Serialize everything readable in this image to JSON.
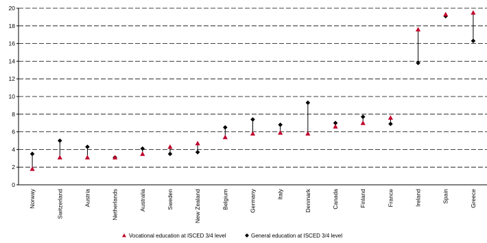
{
  "chart_data": {
    "type": "scatter",
    "title": "",
    "xlabel": "",
    "ylabel": "",
    "ylim": [
      0,
      20
    ],
    "yticks": [
      0,
      2,
      4,
      6,
      8,
      10,
      12,
      14,
      16,
      18,
      20
    ],
    "grid": "horizontal dashed",
    "legend_position": "bottom",
    "categories": [
      "Norway",
      "Switzerland",
      "Austria",
      "Netherlands",
      "Australia",
      "Sweden",
      "New Zealand",
      "Belgium",
      "Germany",
      "Italy",
      "Denmark",
      "Canada",
      "Finland",
      "France",
      "Ireland",
      "Spain",
      "Greece"
    ],
    "series": [
      {
        "name": "Vocational education at ISCED 3/4 level",
        "marker": "triangle",
        "color": "#c0002a",
        "values": [
          1.8,
          3.1,
          3.1,
          3.1,
          3.5,
          4.3,
          4.7,
          5.4,
          5.8,
          5.9,
          5.8,
          6.6,
          7.0,
          7.6,
          17.6,
          19.3,
          19.5
        ]
      },
      {
        "name": "General education at ISCED 3/4 level",
        "marker": "diamond",
        "color": "#000000",
        "values": [
          3.5,
          5.0,
          4.3,
          3.1,
          4.1,
          3.5,
          3.7,
          6.5,
          7.4,
          6.8,
          9.3,
          7.0,
          7.7,
          6.9,
          13.8,
          19.1,
          16.3
        ]
      }
    ]
  }
}
